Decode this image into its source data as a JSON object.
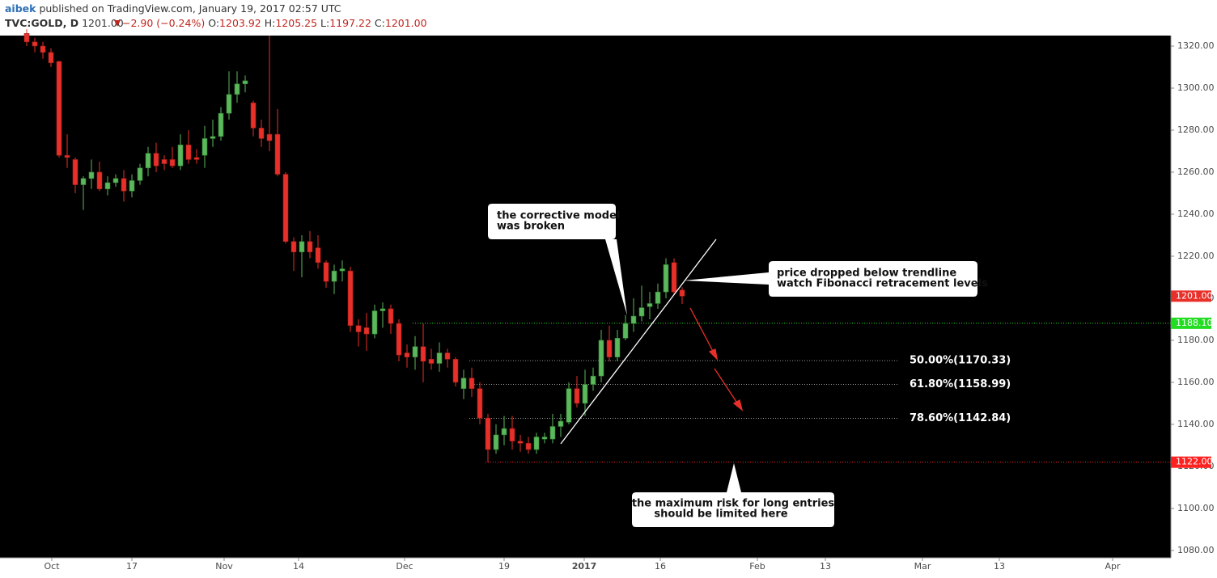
{
  "header": {
    "author": "aibek",
    "published": "published on TradingView.com, January 19, 2017 02:57 UTC",
    "symbol": "TVC:GOLD, D",
    "last": "1201.00",
    "change": "−2.90 (−0.24%)",
    "o_label": "O:",
    "o": "1203.92",
    "h_label": "H:",
    "h": "1205.25",
    "l_label": "L:",
    "l": "1197.22",
    "c_label": "C:",
    "c": "1201.00"
  },
  "chart_data": {
    "type": "candlestick",
    "x": [
      0,
      1,
      2,
      3,
      4,
      5,
      6,
      7,
      8,
      9,
      10,
      11,
      12,
      13,
      14,
      15,
      16,
      17,
      18,
      19,
      20,
      21,
      22,
      23,
      24,
      25,
      26,
      27,
      28,
      29,
      30,
      31,
      32,
      33,
      34,
      35,
      36,
      37,
      38,
      39,
      40,
      41,
      42,
      43,
      44,
      45,
      46,
      47,
      48,
      49,
      50,
      51,
      52,
      53,
      54,
      55,
      56,
      57,
      58,
      59,
      60,
      61,
      62,
      63,
      64,
      65,
      66,
      67,
      68,
      69,
      70,
      71,
      72,
      73,
      74,
      75,
      76,
      77,
      78,
      79,
      80,
      81
    ],
    "open": [
      1326,
      1322,
      1320,
      1317,
      1312.7,
      1268,
      1266,
      1254,
      1257,
      1260,
      1252,
      1255,
      1257,
      1251,
      1256,
      1262,
      1269,
      1266,
      1266,
      1263,
      1273,
      1267,
      1268,
      1276,
      1277,
      1288,
      1297,
      1302,
      1293,
      1281,
      1278,
      1278,
      1259,
      1227,
      1222,
      1227,
      1224,
      1217,
      1208,
      1213,
      1213,
      1187,
      1186,
      1183,
      1194,
      1195,
      1188,
      1174,
      1172,
      1177,
      1171,
      1169,
      1174,
      1171,
      1157,
      1162,
      1157,
      1143,
      1128,
      1135,
      1138,
      1132,
      1131,
      1128,
      1133,
      1133,
      1139,
      1141,
      1157,
      1150,
      1159,
      1163,
      1180,
      1172,
      1181,
      1188,
      1191.5,
      1196,
      1197.5,
      1203,
      1217,
      1203.92
    ],
    "high": [
      1328,
      1324,
      1322,
      1319,
      1313,
      1278,
      1267,
      1258,
      1266,
      1265,
      1258,
      1259,
      1261,
      1259,
      1264,
      1272,
      1274,
      1268,
      1272,
      1278,
      1280,
      1271,
      1282,
      1285,
      1291,
      1308,
      1308,
      1306,
      1294,
      1285,
      1325,
      1290,
      1260,
      1229,
      1230,
      1232,
      1230,
      1218,
      1216,
      1218,
      1215,
      1190,
      1193,
      1197,
      1198,
      1197,
      1190,
      1178,
      1182,
      1188,
      1176,
      1179,
      1176,
      1172,
      1166,
      1167,
      1160,
      1145,
      1140,
      1144,
      1144,
      1135,
      1134,
      1136,
      1136,
      1145,
      1145,
      1160,
      1163,
      1166,
      1167,
      1185,
      1187,
      1185,
      1192,
      1200,
      1206,
      1203,
      1207,
      1219,
      1219,
      1205.25
    ],
    "low": [
      1320,
      1317,
      1314,
      1310,
      1267,
      1262,
      1250,
      1242,
      1252,
      1251,
      1249,
      1253,
      1246,
      1248,
      1254,
      1258,
      1260,
      1261,
      1262,
      1261,
      1264,
      1264,
      1262,
      1272,
      1275,
      1285,
      1293,
      1298,
      1277,
      1272,
      1270,
      1258,
      1226,
      1213,
      1210,
      1219,
      1214,
      1205,
      1202,
      1208,
      1184,
      1177,
      1175,
      1181,
      1186,
      1183,
      1170,
      1167,
      1166,
      1160,
      1166,
      1165,
      1167,
      1158,
      1152,
      1153,
      1140,
      1122,
      1126,
      1130,
      1128,
      1127,
      1126,
      1126,
      1131,
      1131,
      1134,
      1140,
      1148,
      1144,
      1156,
      1160,
      1170,
      1170,
      1180,
      1184,
      1189,
      1190,
      1195,
      1200,
      1202,
      1197.22
    ],
    "close": [
      1322,
      1320,
      1317,
      1312,
      1268,
      1267,
      1254,
      1257,
      1260,
      1252,
      1255,
      1257,
      1251,
      1256,
      1262,
      1269,
      1263,
      1264,
      1263,
      1273,
      1266,
      1266,
      1276,
      1277,
      1288,
      1297,
      1302,
      1303.5,
      1281,
      1276,
      1275,
      1259,
      1227,
      1222,
      1227,
      1222,
      1217,
      1208,
      1213,
      1214,
      1187,
      1184,
      1183,
      1194,
      1195,
      1188,
      1173,
      1172,
      1177,
      1170,
      1169,
      1174,
      1171,
      1160,
      1162,
      1157,
      1143,
      1128,
      1135,
      1138,
      1132,
      1131,
      1128,
      1134,
      1134,
      1139,
      1141.5,
      1157,
      1150,
      1159,
      1163,
      1180,
      1172,
      1181,
      1188,
      1191.5,
      1195.5,
      1197.5,
      1203,
      1216,
      1203,
      1201
    ],
    "up_color": "#5cb85c",
    "down_color": "#e8302a",
    "xlim": [
      -3.3,
      141.4
    ],
    "ylim": [
      1076.5,
      1325
    ],
    "yticks": [
      {
        "value": 1080,
        "label": "1080.00"
      },
      {
        "value": 1100,
        "label": "1100.00"
      },
      {
        "value": 1120,
        "label": "1120.00"
      },
      {
        "value": 1140,
        "label": "1140.00"
      },
      {
        "value": 1160,
        "label": "1160.00"
      },
      {
        "value": 1180,
        "label": "1180.00"
      },
      {
        "value": 1200,
        "label": "1200.00"
      },
      {
        "value": 1220,
        "label": "1220.00"
      },
      {
        "value": 1240,
        "label": "1240.00"
      },
      {
        "value": 1260,
        "label": "1260.00"
      },
      {
        "value": 1280,
        "label": "1280.00"
      },
      {
        "value": 1300,
        "label": "1300.00"
      },
      {
        "value": 1320,
        "label": "1320.00"
      }
    ],
    "xticks": [
      {
        "value": 3.1,
        "label": "Oct"
      },
      {
        "value": 13,
        "label": "17"
      },
      {
        "value": 24.4,
        "label": "Nov"
      },
      {
        "value": 33.6,
        "label": "14"
      },
      {
        "value": 46.7,
        "label": "Dec"
      },
      {
        "value": 59,
        "label": "19"
      },
      {
        "value": 68.9,
        "label": "2017",
        "bold": true
      },
      {
        "value": 78.3,
        "label": "16"
      },
      {
        "value": 90.3,
        "label": "Feb"
      },
      {
        "value": 98.7,
        "label": "13"
      },
      {
        "value": 110.7,
        "label": "Mar"
      },
      {
        "value": 120.2,
        "label": "13"
      },
      {
        "value": 134.2,
        "label": "Apr"
      }
    ],
    "levels": [
      {
        "value": 1188.1,
        "label": "1188.10",
        "color": "#22dd22"
      },
      {
        "value": 1122,
        "label": "1122.00",
        "color": "#ff2020"
      }
    ],
    "last_price": {
      "value": 1201,
      "label": "1201.00",
      "color": "#e8302a"
    },
    "fib_levels": [
      {
        "value": 1170.33,
        "label": "50.00%(1170.33)"
      },
      {
        "value": 1158.99,
        "label": "61.80%(1158.99)"
      },
      {
        "value": 1142.84,
        "label": "78.60%(1142.84)"
      }
    ],
    "annotations": [
      [
        "the corrective model",
        "was broken"
      ],
      [
        "price dropped below trendline",
        "watch Fibonacci retracement levels"
      ],
      [
        "the maximum risk for long entries",
        "should be limited here"
      ]
    ]
  }
}
